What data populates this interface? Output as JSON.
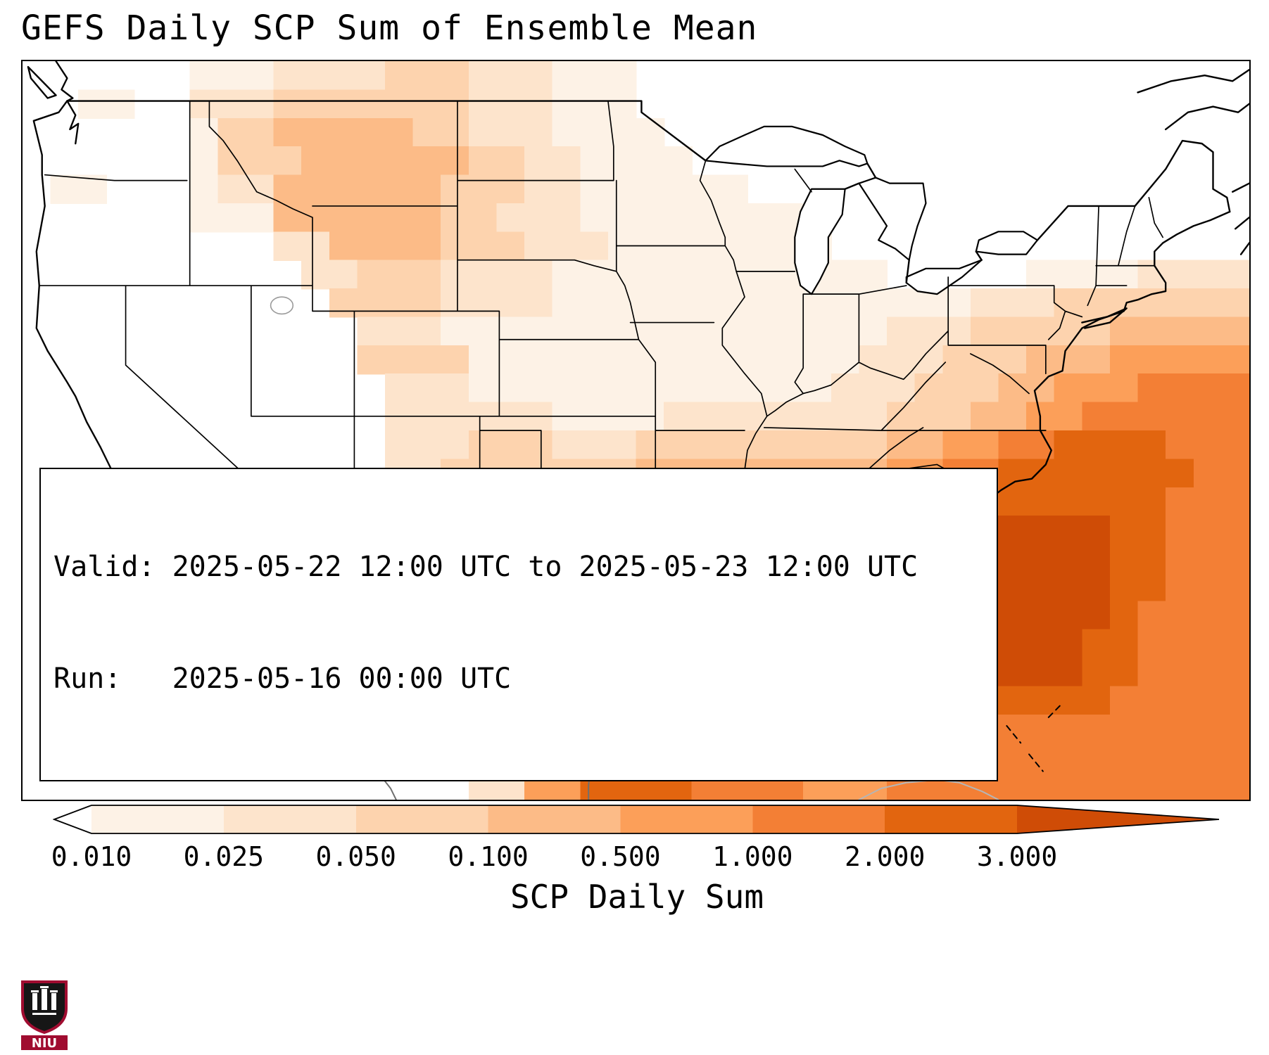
{
  "title": "GEFS Daily SCP Sum of Ensemble Mean",
  "info_box": {
    "valid_line": "Valid: 2025-05-22 12:00 UTC to 2025-05-23 12:00 UTC",
    "run_line": "Run:   2025-05-16 00:00 UTC"
  },
  "colorbar": {
    "label": "SCP Daily Sum",
    "ticks": [
      "0.010",
      "0.025",
      "0.050",
      "0.100",
      "0.500",
      "1.000",
      "2.000",
      "3.000"
    ],
    "under_color": "#ffffff",
    "band_colors": [
      "#fdf2e6",
      "#fde4cc",
      "#fdd3ae",
      "#fcbb87",
      "#fc9f59",
      "#f37f35",
      "#e2650f"
    ],
    "over_color": "#cf4c06"
  },
  "logo": {
    "text": "NIU",
    "color": "#a00c30"
  },
  "chart_data": {
    "type": "heatmap",
    "title": "GEFS Daily SCP Sum of Ensemble Mean",
    "colorbar_label": "SCP Daily Sum",
    "colorbar_ticks": [
      0.01,
      0.025,
      0.05,
      0.1,
      0.5,
      1.0,
      2.0,
      3.0
    ],
    "valid": "2025-05-22 12:00 UTC to 2025-05-23 12:00 UTC",
    "run": "2025-05-16 00:00 UTC",
    "region": "CONUS",
    "grid_cols": 44,
    "grid_rows": 26,
    "palette": [
      "none",
      "#fdf2e6",
      "#fde4cc",
      "#fdd3ae",
      "#fcbb87",
      "#fc9f59",
      "#f37f35",
      "#e2650f",
      "#cf4c06"
    ],
    "intensity_rows": [
      "00000011122223332221110000000000000000000000",
      "00110022233333332221110000000000000000000000",
      "00000013344444332221111000000000000000000000",
      "00000013334444443322111100000000000000000000",
      "01100012244444433322111111000000000000000000",
      "00000011144444433222111111110000000000000000",
      "00000000022444433322211111111000000000000000",
      "00000000002233322221111111111110000011112222",
      "00000000000333322221111111111111112223333333",
      "00000000000022211111111111111112223333344444",
      "00000000000033331111111111111122233344455555",
      "00000000000002221111111111111222333445556666",
      "00000000000002222221111222222223334455666666",
      "00000000000002223332223333333334455667777666",
      "00000000000002233333334444444445566777777766",
      "00000000000002233334444444445555566777777666",
      "00000000000001334444444555555555668888877666",
      "00000000000001334444444455555566778888877666",
      "00000000000003334444555555555556778888877666",
      "00000000000000334444555555555555678888876666",
      "00000000000000334445666555555556778888776666",
      "00000000000000224446666555555556678888776666",
      "00000000000000224455555555555556677777766666",
      "00000000000000113355555555555556666666666666",
      "00000000000000011446666655555556666666666666",
      "00000000000000002255777766665556666666666666"
    ]
  }
}
